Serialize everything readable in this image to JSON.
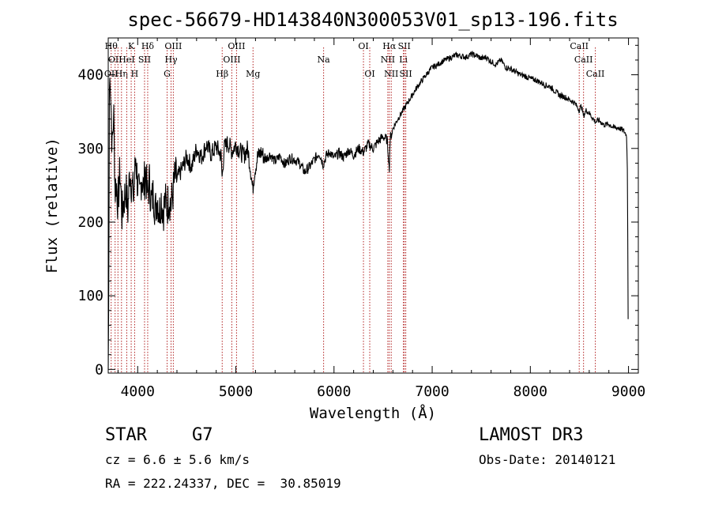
{
  "chart_data": {
    "type": "line",
    "title": "spec-56679-HD143840N300053V01_sp13-196.fits",
    "xlabel": "Wavelength (Å)",
    "ylabel": "Flux (relative)",
    "xlim": [
      3700,
      9100
    ],
    "ylim": [
      -5,
      450
    ],
    "xticks": [
      4000,
      5000,
      6000,
      7000,
      8000,
      9000
    ],
    "yticks": [
      0,
      100,
      200,
      300,
      400
    ],
    "grid": false,
    "line_color": "#000000",
    "marker_color": "#b22222",
    "series": [
      {
        "points": [
          [
            3700,
            0
          ],
          [
            3706,
            110
          ],
          [
            3712,
            380
          ],
          [
            3720,
            405
          ],
          [
            3730,
            350
          ],
          [
            3740,
            300
          ],
          [
            3755,
            350
          ],
          [
            3770,
            240
          ],
          [
            3780,
            255
          ],
          [
            3800,
            225
          ],
          [
            3820,
            270
          ],
          [
            3840,
            210
          ],
          [
            3860,
            230
          ],
          [
            3880,
            245
          ],
          [
            3900,
            215
          ],
          [
            3920,
            270
          ],
          [
            3940,
            250
          ],
          [
            3960,
            235
          ],
          [
            3980,
            290
          ],
          [
            4000,
            250
          ],
          [
            4020,
            230
          ],
          [
            4040,
            265
          ],
          [
            4060,
            245
          ],
          [
            4080,
            270
          ],
          [
            4100,
            235
          ],
          [
            4120,
            255
          ],
          [
            4140,
            225
          ],
          [
            4160,
            240
          ],
          [
            4180,
            215
          ],
          [
            4200,
            235
          ],
          [
            4220,
            212
          ],
          [
            4240,
            232
          ],
          [
            4260,
            215
          ],
          [
            4280,
            228
          ],
          [
            4300,
            220
          ],
          [
            4320,
            235
          ],
          [
            4340,
            222
          ],
          [
            4360,
            240
          ],
          [
            4380,
            262
          ],
          [
            4400,
            258
          ],
          [
            4450,
            272
          ],
          [
            4500,
            288
          ],
          [
            4550,
            275
          ],
          [
            4600,
            300
          ],
          [
            4650,
            288
          ],
          [
            4700,
            305
          ],
          [
            4750,
            292
          ],
          [
            4800,
            303
          ],
          [
            4850,
            290
          ],
          [
            4861,
            258
          ],
          [
            4880,
            300
          ],
          [
            4920,
            308
          ],
          [
            4960,
            296
          ],
          [
            5000,
            306
          ],
          [
            5040,
            297
          ],
          [
            5080,
            290
          ],
          [
            5120,
            300
          ],
          [
            5150,
            272
          ],
          [
            5172,
            244
          ],
          [
            5190,
            268
          ],
          [
            5220,
            288
          ],
          [
            5260,
            295
          ],
          [
            5300,
            285
          ],
          [
            5350,
            292
          ],
          [
            5400,
            282
          ],
          [
            5450,
            290
          ],
          [
            5500,
            278
          ],
          [
            5550,
            287
          ],
          [
            5600,
            285
          ],
          [
            5650,
            280
          ],
          [
            5700,
            268
          ],
          [
            5750,
            275
          ],
          [
            5800,
            285
          ],
          [
            5850,
            294
          ],
          [
            5890,
            278
          ],
          [
            5920,
            290
          ],
          [
            5960,
            295
          ],
          [
            6000,
            287
          ],
          [
            6050,
            294
          ],
          [
            6100,
            288
          ],
          [
            6150,
            298
          ],
          [
            6200,
            291
          ],
          [
            6250,
            300
          ],
          [
            6300,
            295
          ],
          [
            6350,
            306
          ],
          [
            6400,
            300
          ],
          [
            6450,
            310
          ],
          [
            6500,
            316
          ],
          [
            6540,
            312
          ],
          [
            6555,
            290
          ],
          [
            6563,
            268
          ],
          [
            6570,
            312
          ],
          [
            6600,
            327
          ],
          [
            6650,
            340
          ],
          [
            6700,
            351
          ],
          [
            6750,
            362
          ],
          [
            6800,
            373
          ],
          [
            6850,
            384
          ],
          [
            6900,
            393
          ],
          [
            6950,
            402
          ],
          [
            7000,
            410
          ],
          [
            7050,
            413
          ],
          [
            7100,
            418
          ],
          [
            7150,
            421
          ],
          [
            7200,
            424
          ],
          [
            7250,
            427
          ],
          [
            7300,
            425
          ],
          [
            7350,
            424
          ],
          [
            7400,
            428
          ],
          [
            7450,
            426
          ],
          [
            7500,
            422
          ],
          [
            7550,
            424
          ],
          [
            7600,
            418
          ],
          [
            7650,
            414
          ],
          [
            7700,
            420
          ],
          [
            7750,
            410
          ],
          [
            7800,
            408
          ],
          [
            7850,
            404
          ],
          [
            7900,
            400
          ],
          [
            7950,
            398
          ],
          [
            8000,
            395
          ],
          [
            8050,
            393
          ],
          [
            8100,
            390
          ],
          [
            8150,
            386
          ],
          [
            8200,
            384
          ],
          [
            8250,
            378
          ],
          [
            8300,
            372
          ],
          [
            8350,
            370
          ],
          [
            8400,
            366
          ],
          [
            8450,
            362
          ],
          [
            8498,
            352
          ],
          [
            8520,
            358
          ],
          [
            8542,
            344
          ],
          [
            8570,
            352
          ],
          [
            8600,
            348
          ],
          [
            8662,
            336
          ],
          [
            8700,
            338
          ],
          [
            8750,
            332
          ],
          [
            8800,
            333
          ],
          [
            8850,
            328
          ],
          [
            8900,
            328
          ],
          [
            8950,
            324
          ],
          [
            8980,
            318
          ],
          [
            8990,
            260
          ],
          [
            8995,
            70
          ],
          [
            8998,
            65
          ]
        ]
      }
    ],
    "line_markers": [
      {
        "wavelength": 3730,
        "rows": {
          "1": "Hθ",
          "3": "OII"
        }
      },
      {
        "wavelength": 3770,
        "rows": {
          "2": "OII"
        }
      },
      {
        "wavelength": 3799
      },
      {
        "wavelength": 3835,
        "rows": {
          "3": "Hη"
        }
      },
      {
        "wavelength": 3889,
        "rows": {
          "2": "HeI"
        }
      },
      {
        "wavelength": 3934,
        "rows": {
          "1": "K"
        }
      },
      {
        "wavelength": 3969,
        "rows": {
          "3": "H"
        }
      },
      {
        "wavelength": 4070,
        "rows": {
          "2": "SII"
        }
      },
      {
        "wavelength": 4102,
        "rows": {
          "1": "Hδ"
        }
      },
      {
        "wavelength": 4300,
        "rows": {
          "3": "G"
        }
      },
      {
        "wavelength": 4340,
        "rows": {
          "2": "Hγ"
        }
      },
      {
        "wavelength": 4363,
        "rows": {
          "1": "OIII"
        }
      },
      {
        "wavelength": 4861,
        "rows": {
          "3": "Hβ"
        }
      },
      {
        "wavelength": 4959,
        "rows": {
          "2": "OIII"
        }
      },
      {
        "wavelength": 5007,
        "rows": {
          "1": "OIII"
        }
      },
      {
        "wavelength": 5175,
        "rows": {
          "3": "Mg"
        }
      },
      {
        "wavelength": 5894,
        "rows": {
          "2": "Na"
        }
      },
      {
        "wavelength": 6300,
        "rows": {
          "1": "OI"
        }
      },
      {
        "wavelength": 6364,
        "rows": {
          "3": "OI"
        }
      },
      {
        "wavelength": 6548,
        "rows": {
          "2": "NII"
        }
      },
      {
        "wavelength": 6563,
        "rows": {
          "1": "Hα"
        }
      },
      {
        "wavelength": 6583,
        "rows": {
          "3": "NII"
        }
      },
      {
        "wavelength": 6707,
        "rows": {
          "2": "Li"
        }
      },
      {
        "wavelength": 6716,
        "rows": {
          "1": "SII"
        }
      },
      {
        "wavelength": 6731,
        "rows": {
          "3": "SII"
        }
      },
      {
        "wavelength": 8498,
        "rows": {
          "1": "CaII"
        }
      },
      {
        "wavelength": 8542,
        "rows": {
          "2": "CaII"
        }
      },
      {
        "wavelength": 8662,
        "rows": {
          "3": "CaII"
        }
      }
    ]
  },
  "info": {
    "object_class": "STAR",
    "subclass": "G7",
    "survey": "LAMOST DR3",
    "redshift": "cz = 6.6 ± 5.6 km/s",
    "obs_date": "Obs-Date: 20140121",
    "coords": "RA = 222.24337, DEC =  30.85019"
  }
}
